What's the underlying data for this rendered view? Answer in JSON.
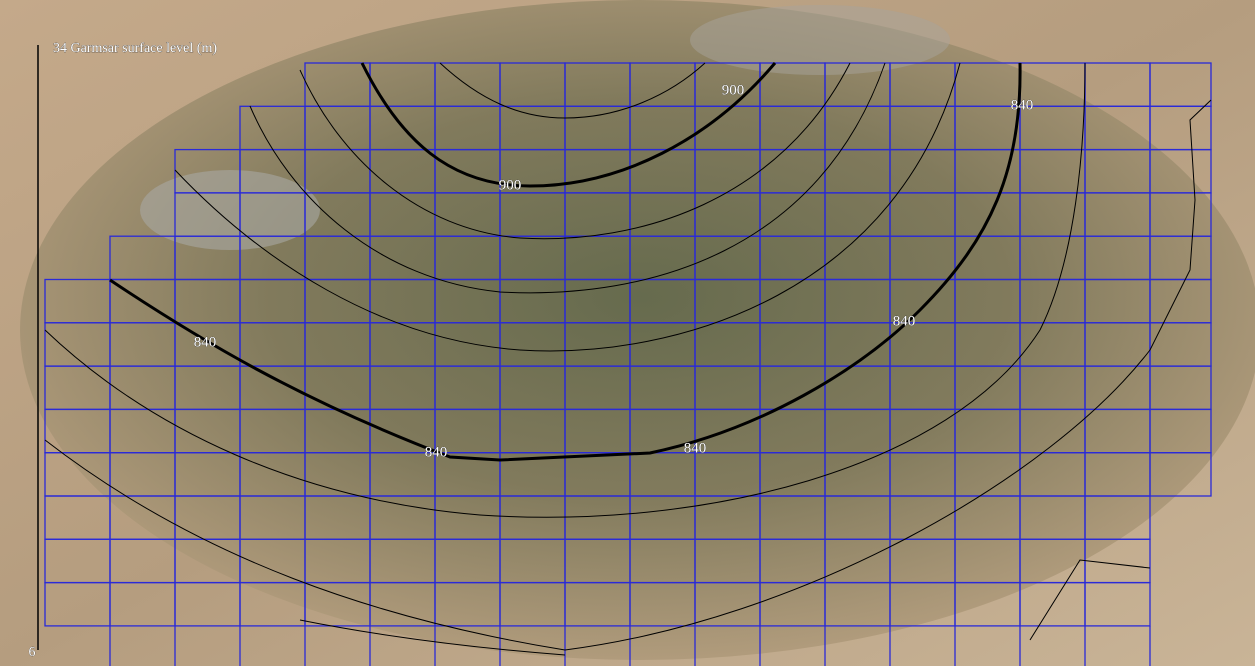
{
  "title": "34 Garmsar surface level (m)",
  "scale_bottom_label": "6",
  "contour_labels": [
    "900",
    "900",
    "840",
    "840",
    "840",
    "840",
    "840"
  ]
}
